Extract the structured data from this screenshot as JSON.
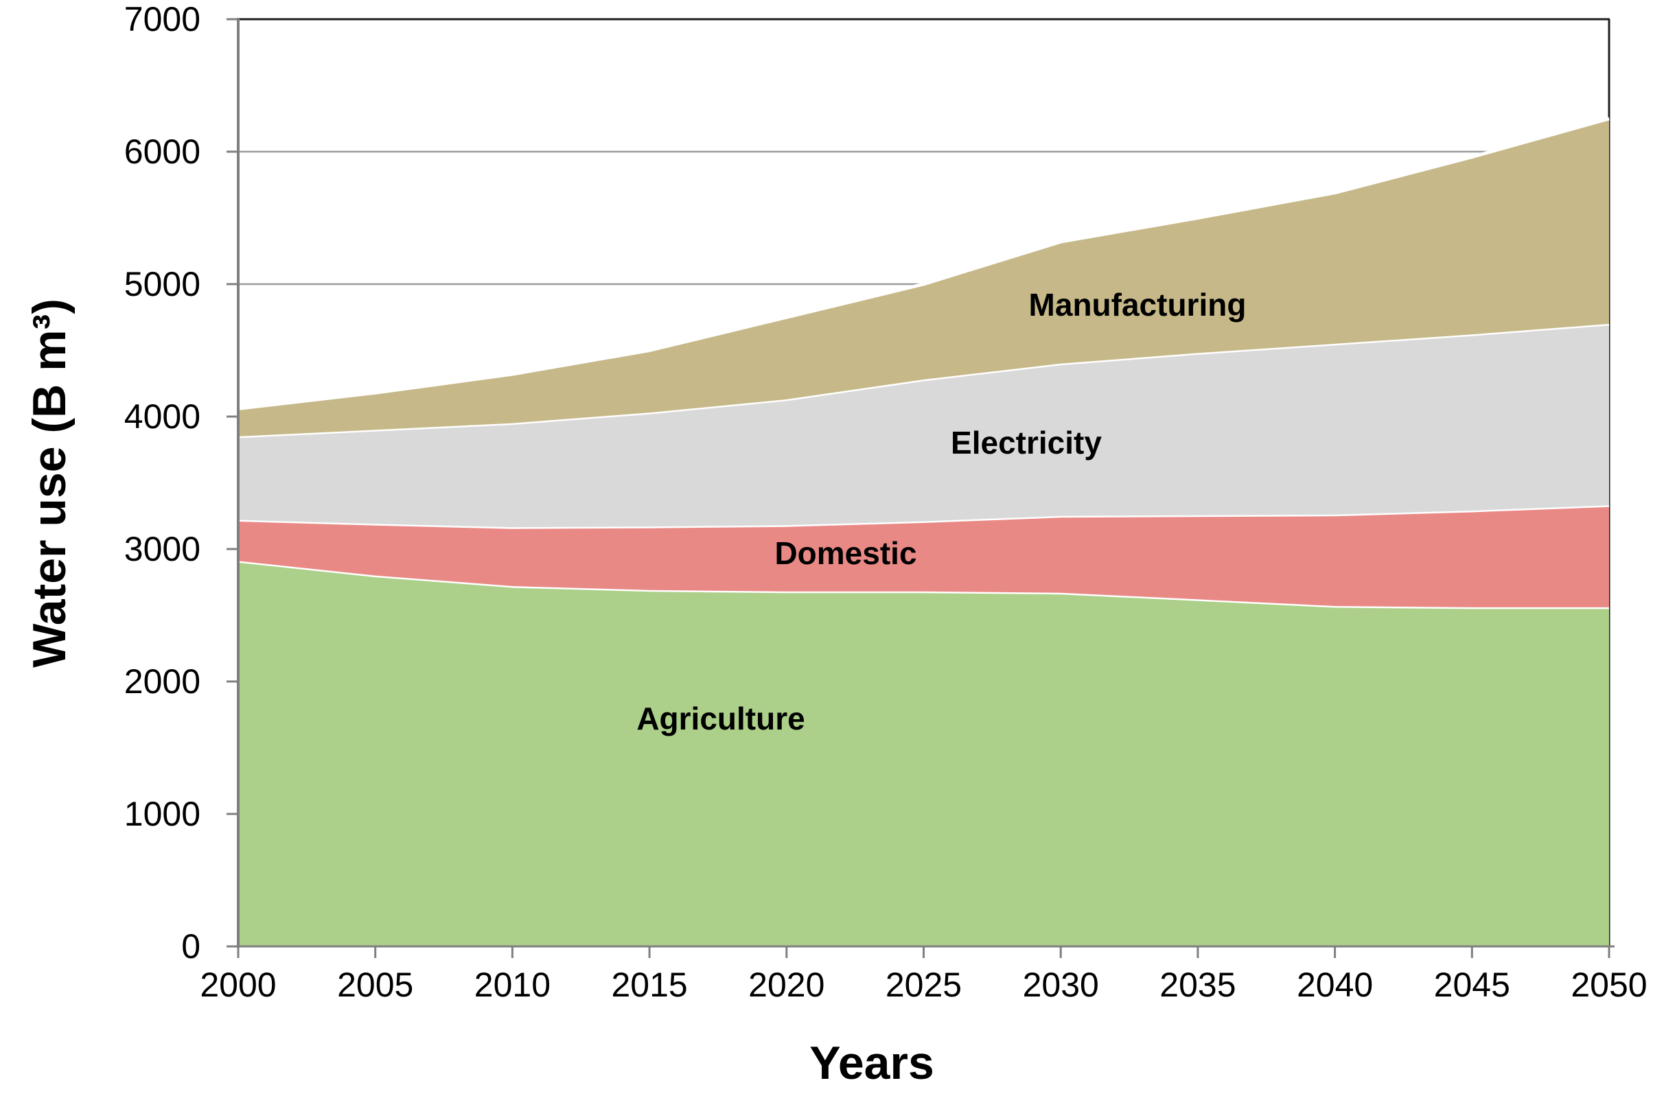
{
  "page": {
    "background_color": "#ffffff",
    "title": ""
  },
  "style": {
    "axis_color": "#7f7f7f",
    "grid_color": "#9b9b9b",
    "frame_color": "#1f1f1f",
    "separator_color": "#ffffff",
    "text_color": "#000000"
  },
  "chart_data": {
    "type": "area",
    "stacked": true,
    "title": "",
    "xlabel": "Years",
    "ylabel": "Water use (B m³)",
    "x": [
      2000,
      2005,
      2010,
      2015,
      2020,
      2025,
      2030,
      2035,
      2040,
      2045,
      2050
    ],
    "xlim": [
      2000,
      2050
    ],
    "ylim": [
      0,
      7000
    ],
    "yticks": [
      0,
      1000,
      2000,
      3000,
      4000,
      5000,
      6000,
      7000
    ],
    "grid": "horizontal gridlines at every 1000, hidden behind areas",
    "legend": "labels drawn inside areas",
    "series": [
      {
        "name": "Agriculture",
        "color": "#accf89",
        "values": [
          2910,
          2800,
          2720,
          2690,
          2680,
          2680,
          2670,
          2620,
          2570,
          2560,
          2560
        ]
      },
      {
        "name": "Domestic",
        "color": "#e98985",
        "values": [
          310,
          390,
          445,
          480,
          500,
          530,
          580,
          635,
          690,
          730,
          770
        ]
      },
      {
        "name": "Electricity",
        "color": "#d9d9d9",
        "values": [
          630,
          710,
          785,
          860,
          950,
          1070,
          1150,
          1225,
          1290,
          1330,
          1370
        ]
      },
      {
        "name": "Manufacturing",
        "color": "#c6b888",
        "values": [
          210,
          280,
          370,
          470,
          620,
          720,
          920,
          1020,
          1140,
          1340,
          1550
        ]
      }
    ],
    "stacked_tops": {
      "agriculture": [
        2910,
        2800,
        2720,
        2690,
        2680,
        2680,
        2670,
        2620,
        2570,
        2560,
        2560
      ],
      "domestic": [
        3220,
        3190,
        3165,
        3170,
        3180,
        3210,
        3250,
        3255,
        3260,
        3290,
        3330
      ],
      "electricity": [
        3850,
        3900,
        3950,
        4030,
        4130,
        4280,
        4400,
        4480,
        4550,
        4620,
        4700
      ],
      "manufacturing": [
        4060,
        4180,
        4320,
        4500,
        4750,
        5000,
        5320,
        5500,
        5690,
        5960,
        6250
      ]
    }
  }
}
